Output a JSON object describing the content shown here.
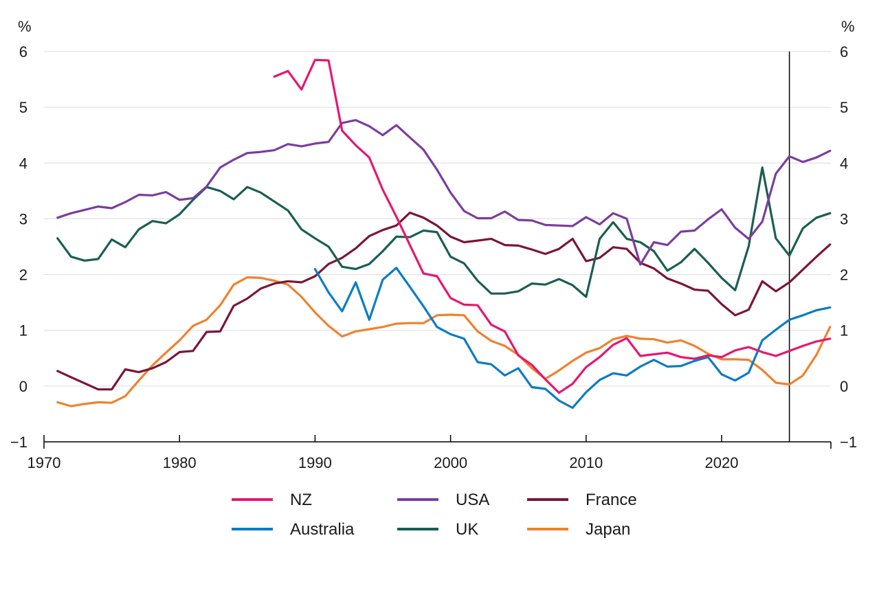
{
  "chart_data": {
    "type": "line",
    "title": "",
    "xlabel": "",
    "ylabel_left": "%",
    "ylabel_right": "%",
    "xlim": [
      1970,
      2028
    ],
    "ylim": [
      -1,
      6
    ],
    "x_ticks": [
      1970,
      1980,
      1990,
      2000,
      2010,
      2020
    ],
    "y_ticks": [
      -1,
      0,
      1,
      2,
      3,
      4,
      5,
      6
    ],
    "y_tick_labels": [
      "−1",
      "0",
      "1",
      "2",
      "3",
      "4",
      "5",
      "6"
    ],
    "vertical_marker_x": 2025,
    "grid": true,
    "legend_position": "bottom",
    "series": [
      {
        "name": "NZ",
        "color": "#e5176f",
        "x": [
          1987,
          1988,
          1989,
          1990,
          1991,
          1992,
          1993,
          1994,
          1995,
          1996,
          1997,
          1998,
          1999,
          2000,
          2001,
          2002,
          2003,
          2004,
          2005,
          2006,
          2007,
          2008,
          2009,
          2010,
          2011,
          2012,
          2013,
          2014,
          2015,
          2016,
          2017,
          2018,
          2019,
          2020,
          2021,
          2022,
          2023,
          2024,
          2025,
          2026,
          2027,
          2028
        ],
        "values": [
          5.55,
          5.65,
          5.32,
          5.85,
          5.84,
          4.58,
          4.32,
          4.1,
          3.52,
          3.04,
          2.53,
          2.02,
          1.97,
          1.58,
          1.46,
          1.45,
          1.1,
          0.98,
          0.55,
          0.38,
          0.12,
          -0.12,
          0.04,
          0.34,
          0.52,
          0.74,
          0.86,
          0.54,
          0.57,
          0.6,
          0.52,
          0.49,
          0.55,
          0.52,
          0.64,
          0.7,
          0.61,
          0.54,
          0.63,
          0.72,
          0.8,
          0.85
        ]
      },
      {
        "name": "Australia",
        "color": "#0a7cc4",
        "x": [
          1990,
          1991,
          1992,
          1993,
          1994,
          1995,
          1996,
          1997,
          1998,
          1999,
          2000,
          2001,
          2002,
          2003,
          2004,
          2005,
          2006,
          2007,
          2008,
          2009,
          2010,
          2011,
          2012,
          2013,
          2014,
          2015,
          2016,
          2017,
          2018,
          2019,
          2020,
          2021,
          2022,
          2023,
          2024,
          2025,
          2026,
          2027,
          2028
        ],
        "values": [
          2.1,
          1.68,
          1.34,
          1.86,
          1.19,
          1.91,
          2.12,
          1.78,
          1.43,
          1.06,
          0.93,
          0.85,
          0.43,
          0.39,
          0.19,
          0.32,
          -0.02,
          -0.05,
          -0.26,
          -0.39,
          -0.11,
          0.11,
          0.23,
          0.19,
          0.35,
          0.47,
          0.35,
          0.36,
          0.45,
          0.52,
          0.21,
          0.1,
          0.24,
          0.82,
          1.01,
          1.19,
          1.27,
          1.36,
          1.41
        ]
      },
      {
        "name": "USA",
        "color": "#7b3d9e",
        "x": [
          1971,
          1972,
          1973,
          1974,
          1975,
          1976,
          1977,
          1978,
          1979,
          1980,
          1981,
          1982,
          1983,
          1984,
          1985,
          1986,
          1987,
          1988,
          1989,
          1990,
          1991,
          1992,
          1993,
          1994,
          1995,
          1996,
          1997,
          1998,
          1999,
          2000,
          2001,
          2002,
          2003,
          2004,
          2005,
          2006,
          2007,
          2008,
          2009,
          2010,
          2011,
          2012,
          2013,
          2014,
          2015,
          2016,
          2017,
          2018,
          2019,
          2020,
          2021,
          2022,
          2023,
          2024,
          2025,
          2026,
          2027,
          2028
        ],
        "values": [
          3.02,
          3.1,
          3.16,
          3.22,
          3.19,
          3.3,
          3.43,
          3.42,
          3.48,
          3.34,
          3.37,
          3.58,
          3.92,
          4.06,
          4.18,
          4.2,
          4.23,
          4.34,
          4.3,
          4.35,
          4.38,
          4.72,
          4.77,
          4.66,
          4.5,
          4.68,
          4.46,
          4.24,
          3.88,
          3.47,
          3.14,
          3.01,
          3.01,
          3.13,
          2.98,
          2.97,
          2.89,
          2.88,
          2.87,
          3.03,
          2.9,
          3.1,
          3.0,
          2.18,
          2.58,
          2.53,
          2.77,
          2.79,
          2.99,
          3.17,
          2.84,
          2.64,
          2.95,
          3.81,
          4.12,
          4.02,
          4.1,
          4.22
        ]
      },
      {
        "name": "UK",
        "color": "#1a5e52",
        "x": [
          1971,
          1972,
          1973,
          1974,
          1975,
          1976,
          1977,
          1978,
          1979,
          1980,
          1981,
          1982,
          1983,
          1984,
          1985,
          1986,
          1987,
          1988,
          1989,
          1990,
          1991,
          1992,
          1993,
          1994,
          1995,
          1996,
          1997,
          1998,
          1999,
          2000,
          2001,
          2002,
          2003,
          2004,
          2005,
          2006,
          2007,
          2008,
          2009,
          2010,
          2011,
          2012,
          2013,
          2014,
          2015,
          2016,
          2017,
          2018,
          2019,
          2020,
          2021,
          2022,
          2023,
          2024,
          2025,
          2026,
          2027,
          2028
        ],
        "values": [
          2.65,
          2.32,
          2.25,
          2.28,
          2.63,
          2.49,
          2.81,
          2.96,
          2.92,
          3.08,
          3.34,
          3.57,
          3.5,
          3.35,
          3.57,
          3.47,
          3.31,
          3.15,
          2.81,
          2.65,
          2.5,
          2.14,
          2.1,
          2.19,
          2.42,
          2.68,
          2.67,
          2.79,
          2.76,
          2.32,
          2.2,
          1.89,
          1.66,
          1.66,
          1.7,
          1.84,
          1.82,
          1.92,
          1.81,
          1.6,
          2.64,
          2.94,
          2.64,
          2.58,
          2.42,
          2.07,
          2.22,
          2.46,
          2.21,
          1.94,
          1.72,
          2.51,
          3.92,
          2.65,
          2.34,
          2.83,
          3.02,
          3.1
        ]
      },
      {
        "name": "France",
        "color": "#7a1538",
        "x": [
          1971,
          1972,
          1973,
          1974,
          1975,
          1976,
          1977,
          1978,
          1979,
          1980,
          1981,
          1982,
          1983,
          1984,
          1985,
          1986,
          1987,
          1988,
          1989,
          1990,
          1991,
          1992,
          1993,
          1994,
          1995,
          1996,
          1997,
          1998,
          1999,
          2000,
          2001,
          2002,
          2003,
          2004,
          2005,
          2006,
          2007,
          2008,
          2009,
          2010,
          2011,
          2012,
          2013,
          2014,
          2015,
          2016,
          2017,
          2018,
          2019,
          2020,
          2021,
          2022,
          2023,
          2024,
          2025,
          2026,
          2027,
          2028
        ],
        "values": [
          0.27,
          0.16,
          0.05,
          -0.06,
          -0.06,
          0.3,
          0.25,
          0.32,
          0.43,
          0.61,
          0.63,
          0.97,
          0.98,
          1.44,
          1.57,
          1.75,
          1.84,
          1.88,
          1.86,
          1.97,
          2.19,
          2.3,
          2.47,
          2.69,
          2.8,
          2.88,
          3.11,
          3.02,
          2.88,
          2.68,
          2.58,
          2.61,
          2.64,
          2.53,
          2.52,
          2.45,
          2.37,
          2.46,
          2.64,
          2.24,
          2.3,
          2.49,
          2.46,
          2.21,
          2.11,
          1.93,
          1.84,
          1.73,
          1.71,
          1.47,
          1.27,
          1.37,
          1.88,
          1.7,
          1.86,
          2.09,
          2.32,
          2.54
        ]
      },
      {
        "name": "Japan",
        "color": "#f0812c",
        "x": [
          1971,
          1972,
          1973,
          1974,
          1975,
          1976,
          1977,
          1978,
          1979,
          1980,
          1981,
          1982,
          1983,
          1984,
          1985,
          1986,
          1987,
          1988,
          1989,
          1990,
          1991,
          1992,
          1993,
          1994,
          1995,
          1996,
          1997,
          1998,
          1999,
          2000,
          2001,
          2002,
          2003,
          2004,
          2005,
          2006,
          2007,
          2008,
          2009,
          2010,
          2011,
          2012,
          2013,
          2014,
          2015,
          2016,
          2017,
          2018,
          2019,
          2020,
          2021,
          2022,
          2023,
          2024,
          2025,
          2026,
          2027,
          2028
        ],
        "values": [
          -0.29,
          -0.36,
          -0.32,
          -0.29,
          -0.3,
          -0.18,
          0.1,
          0.37,
          0.6,
          0.82,
          1.08,
          1.19,
          1.45,
          1.82,
          1.95,
          1.94,
          1.89,
          1.82,
          1.6,
          1.32,
          1.08,
          0.89,
          0.98,
          1.02,
          1.06,
          1.12,
          1.13,
          1.13,
          1.27,
          1.28,
          1.27,
          0.98,
          0.81,
          0.72,
          0.56,
          0.32,
          0.13,
          0.28,
          0.45,
          0.6,
          0.68,
          0.84,
          0.9,
          0.85,
          0.84,
          0.78,
          0.82,
          0.72,
          0.58,
          0.48,
          0.48,
          0.47,
          0.29,
          0.06,
          0.03,
          0.19,
          0.56,
          1.06
        ]
      }
    ]
  }
}
